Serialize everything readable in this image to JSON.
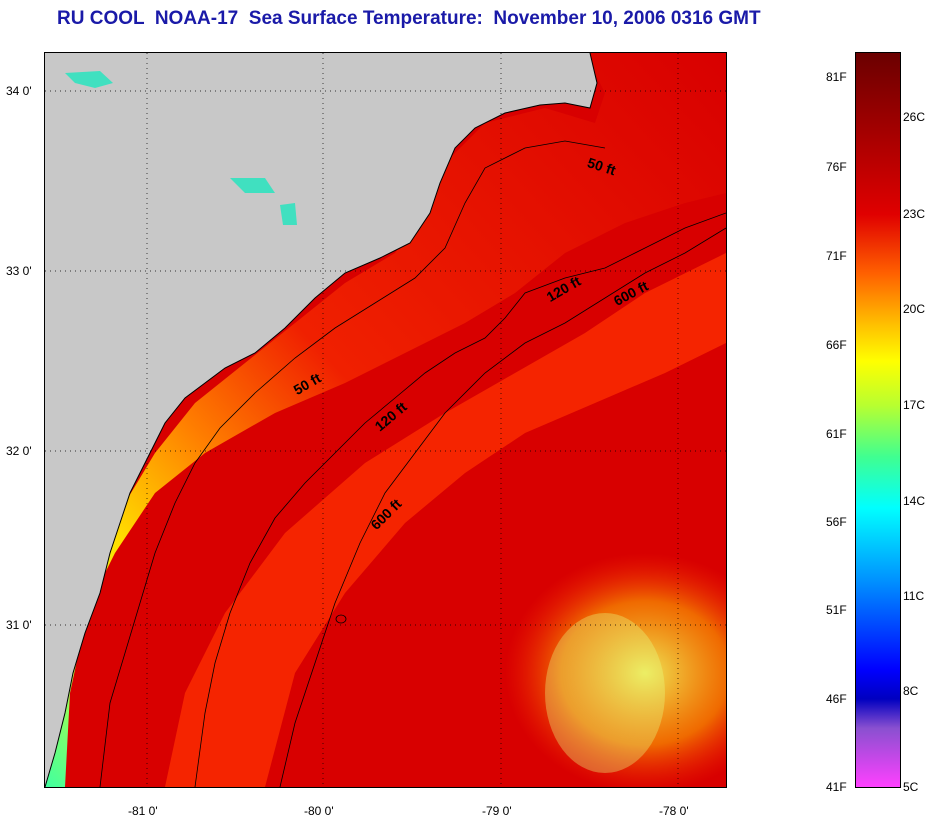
{
  "title": "RU COOL  NOAA-17  Sea Surface Temperature:  November 10, 2006 0316 GMT",
  "map": {
    "lat_labels": [
      "34 0'",
      "33 0'",
      "32 0'",
      "31 0'"
    ],
    "lon_labels": [
      "-81 0'",
      "-80 0'",
      "-79 0'",
      "-78 0'"
    ],
    "contour_labels": [
      "50 ft",
      "50 ft",
      "120 ft",
      "120 ft",
      "600 ft",
      "600 ft"
    ],
    "colors": {
      "land": "#c8c8c8",
      "hot": "#d80000",
      "warm": "#ff4000",
      "mid": "#ffd000",
      "cool": "#40ffa0",
      "coast": "#000000"
    }
  },
  "colorbar": {
    "fahrenheit": [
      "81F",
      "76F",
      "71F",
      "66F",
      "61F",
      "56F",
      "51F",
      "46F",
      "41F"
    ],
    "celsius": [
      "26C",
      "23C",
      "20C",
      "17C",
      "14C",
      "11C",
      "8C",
      "5C"
    ]
  }
}
